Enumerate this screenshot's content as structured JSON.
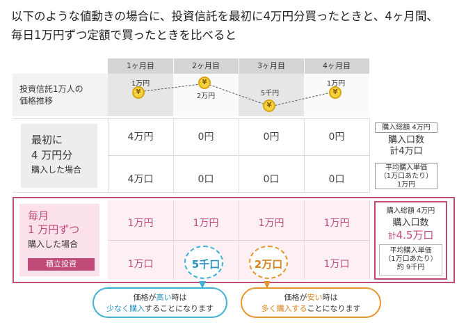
{
  "title": {
    "line1": "以下のような値動きの場合に、投資信託を最初に4万円分買ったときと、4ヶ月間、",
    "line2": "毎日1万円ずつ定額で買ったときを比べると"
  },
  "months": [
    "1ヶ月目",
    "2ヶ月目",
    "3ヶ月目",
    "4ヶ月目"
  ],
  "price_row": {
    "label_line1": "投資信託1万人の",
    "label_line2": "価格推移",
    "prices": [
      "1万円",
      "2万円",
      "5千円",
      "1万円"
    ],
    "coin_symbol": "¥"
  },
  "lump_sum": {
    "label_line1": "最初に",
    "label_line2": "4 万円分",
    "label_line3": "購入した場合",
    "amounts": [
      "4万円",
      "0円",
      "0円",
      "0円"
    ],
    "units": [
      "4万口",
      "0口",
      "0口",
      "0口"
    ],
    "summary": {
      "total": "購入総額 4万円",
      "units_title": "購入口数",
      "units_value": "計4万口",
      "avg_title": "平均購入単価",
      "avg_sub": "（1万口あたり）",
      "avg_value": "1万円"
    }
  },
  "monthly": {
    "label_line1": "毎月",
    "label_line2": "1 万円ずつ",
    "label_line3": "購入した場合",
    "badge": "積立投資",
    "amounts": [
      "1万円",
      "1万円",
      "1万円",
      "1万円"
    ],
    "units": [
      "1万口",
      "5千口",
      "2万口",
      "1万口"
    ],
    "summary": {
      "total": "購入総額 4万円",
      "units_title": "購入口数",
      "units_value_prefix": "計",
      "units_value": "4.5万口",
      "avg_title": "平均購入単価",
      "avg_sub": "（1万口あたり）",
      "avg_value": "約 9千円"
    }
  },
  "callouts": {
    "blue": {
      "l1_a": "価格が",
      "l1_hl": "高い",
      "l1_b": "時は",
      "l2_hl": "少なく購入",
      "l2_b": "することになります"
    },
    "orange": {
      "l1_a": "価格が",
      "l1_hl": "安い",
      "l1_b": "時は",
      "l2_hl": "多く購入する",
      "l2_b": "ことになります"
    }
  },
  "colors": {
    "accent_pink": "#c04a78",
    "blue": "#3eb0d6",
    "orange": "#e8942a",
    "coin": "#f4d23c"
  }
}
